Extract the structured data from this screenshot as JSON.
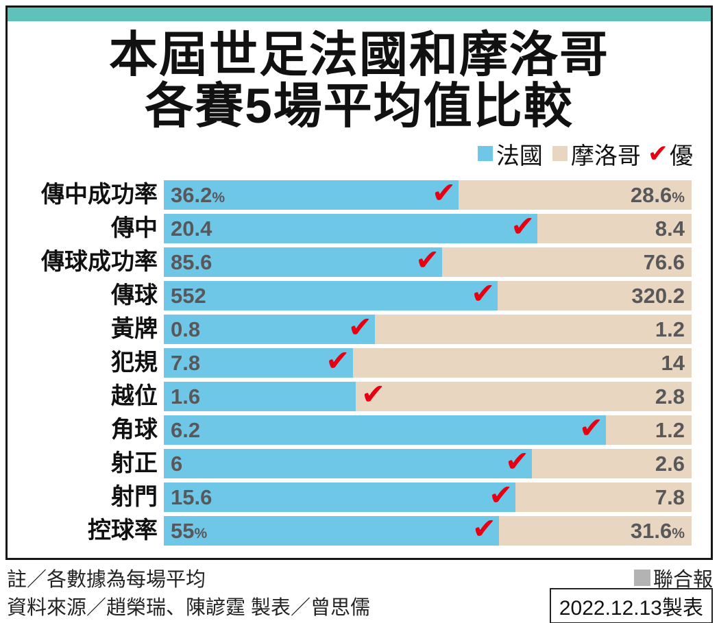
{
  "header": {
    "title_line1": "本屆世足法國和摩洛哥",
    "title_line2": "各賽5場平均值比較"
  },
  "legend": {
    "france_label": "法國",
    "morocco_label": "摩洛哥",
    "better_label": "優",
    "check_glyph": "✔"
  },
  "colors": {
    "france_blue": "#6fc7e8",
    "morocco_beige": "#e8d6c0",
    "check_red": "#e60012",
    "teal_strip": "#5ec1ba",
    "value_text": "#58585a",
    "press_gray": "#b3b3b3"
  },
  "chart_data": {
    "type": "bar",
    "title": "本屆世足法國和摩洛哥各賽5場平均值比較",
    "series_names": [
      "法國",
      "摩洛哥"
    ],
    "note": "每列為法國(左,藍)與摩洛哥(右,米色)比例分割條，紅勾標示較優一方",
    "rows": [
      {
        "label": "傳中成功率",
        "france": 36.2,
        "morocco": 28.6,
        "france_display": "36.2%",
        "morocco_display": "28.6%",
        "better": "france"
      },
      {
        "label": "傳中",
        "france": 20.4,
        "morocco": 8.4,
        "france_display": "20.4",
        "morocco_display": "8.4",
        "better": "france"
      },
      {
        "label": "傳球成功率",
        "france": 85.6,
        "morocco": 76.6,
        "france_display": "85.6",
        "morocco_display": "76.6",
        "better": "france"
      },
      {
        "label": "傳球",
        "france": 552,
        "morocco": 320.2,
        "france_display": "552",
        "morocco_display": "320.2",
        "better": "france"
      },
      {
        "label": "黃牌",
        "france": 0.8,
        "morocco": 1.2,
        "france_display": "0.8",
        "morocco_display": "1.2",
        "better": "france"
      },
      {
        "label": "犯規",
        "france": 7.8,
        "morocco": 14,
        "france_display": "7.8",
        "morocco_display": "14",
        "better": "france"
      },
      {
        "label": "越位",
        "france": 1.6,
        "morocco": 2.8,
        "france_display": "1.6",
        "morocco_display": "2.8",
        "better": "morocco"
      },
      {
        "label": "角球",
        "france": 6.2,
        "morocco": 1.2,
        "france_display": "6.2",
        "morocco_display": "1.2",
        "better": "france"
      },
      {
        "label": "射正",
        "france": 6,
        "morocco": 2.6,
        "france_display": "6",
        "morocco_display": "2.6",
        "better": "france"
      },
      {
        "label": "射門",
        "france": 15.6,
        "morocco": 7.8,
        "france_display": "15.6",
        "morocco_display": "7.8",
        "better": "france"
      },
      {
        "label": "控球率",
        "france": 55,
        "morocco": 31.6,
        "france_display": "55%",
        "morocco_display": "31.6%",
        "better": "france"
      }
    ]
  },
  "footer": {
    "note": "註／各數據為每場平均",
    "press": "聯合報",
    "source": "資料來源／趙榮瑞、陳諺霆 製表／曾思儒",
    "date": "2022.12.13製表"
  }
}
